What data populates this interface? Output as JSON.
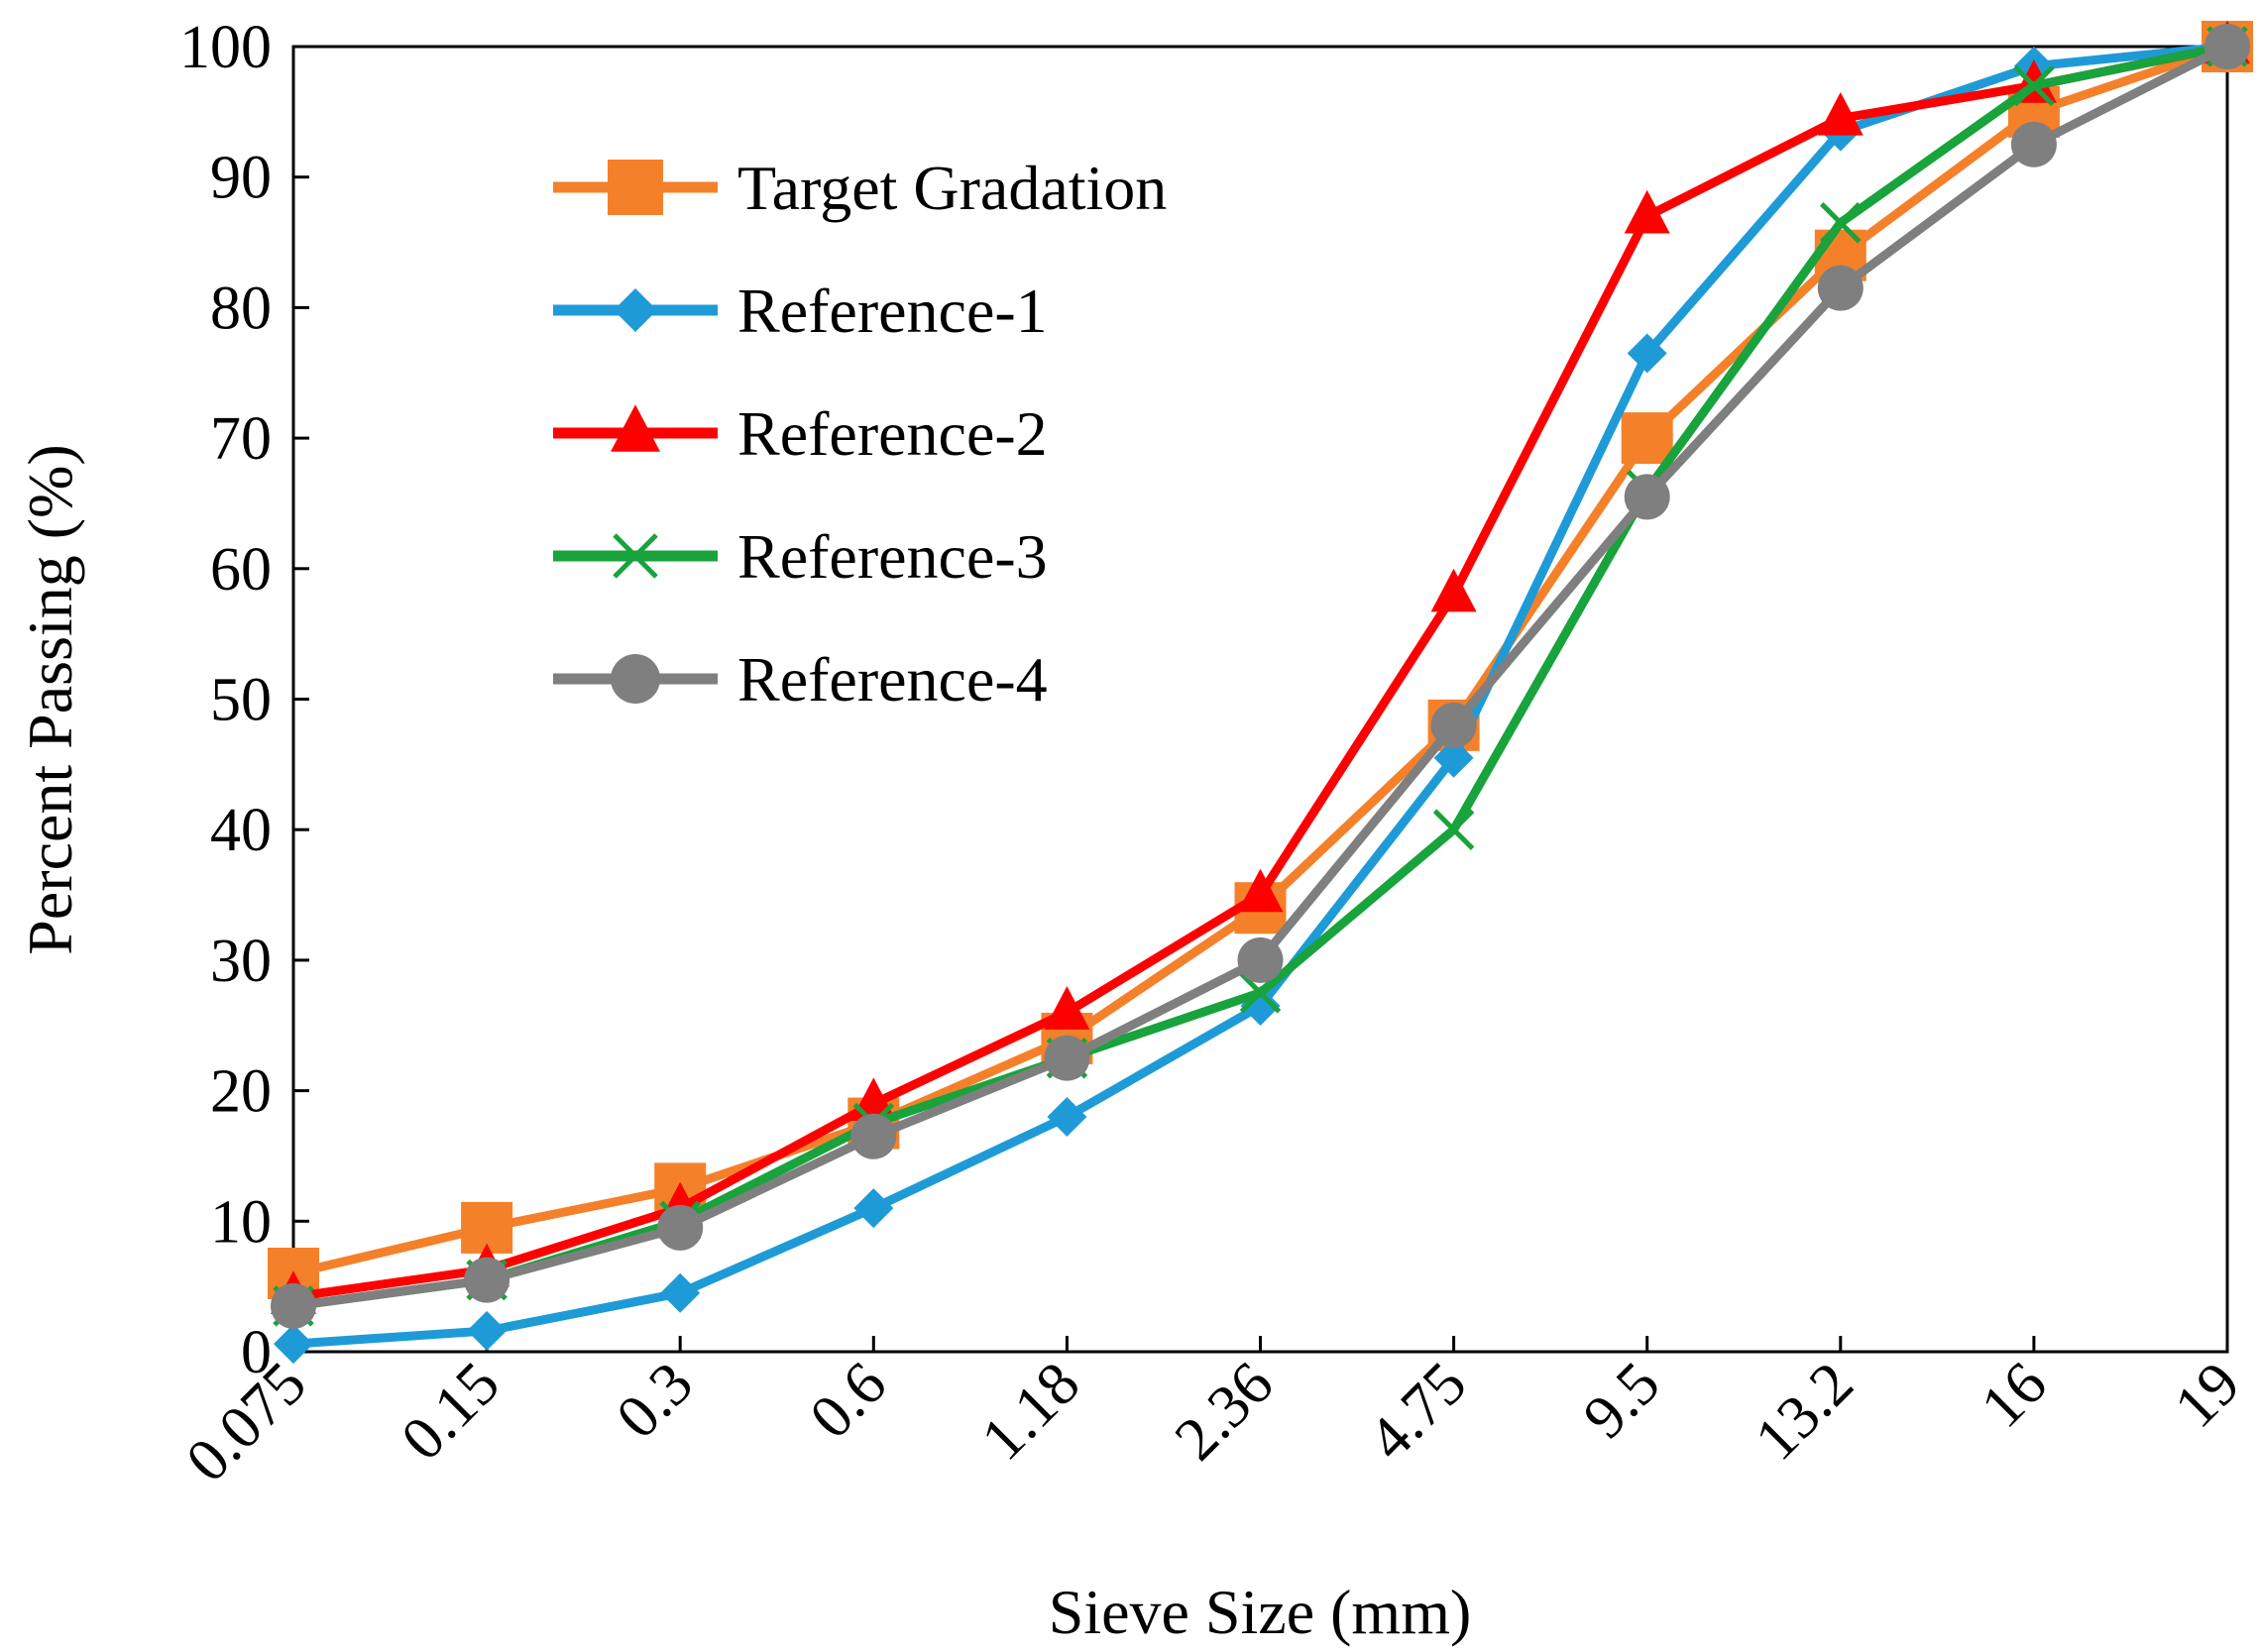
{
  "chart_data": {
    "type": "line",
    "title": "",
    "xlabel": "Sieve Size (mm)",
    "ylabel": "Percent Passing (%)",
    "categories": [
      "0.075",
      "0.15",
      "0.3",
      "0.6",
      "1.18",
      "2.36",
      "4.75",
      "9.5",
      "13.2",
      "16",
      "19"
    ],
    "ylim": [
      0,
      100
    ],
    "yticks": [
      0,
      10,
      20,
      30,
      40,
      50,
      60,
      70,
      80,
      90,
      100
    ],
    "grid": false,
    "legend_position": "top-left",
    "series": [
      {
        "name": "Target Gradation",
        "color": "#F5802A",
        "marker": "square",
        "values": [
          6,
          9.5,
          12.5,
          17.5,
          24,
          34,
          48,
          70,
          84,
          95,
          100
        ]
      },
      {
        "name": "Reference-1",
        "color": "#1E9BD7",
        "marker": "diamond",
        "values": [
          0.6,
          1.6,
          4.5,
          11,
          18,
          26.5,
          45.5,
          76.5,
          93.5,
          98.5,
          100
        ]
      },
      {
        "name": "Reference-2",
        "color": "#FF0000",
        "marker": "triangle",
        "values": [
          4.2,
          6.3,
          11,
          19,
          26,
          35,
          58,
          87,
          94.5,
          97,
          100
        ]
      },
      {
        "name": "Reference-3",
        "color": "#18A33C",
        "marker": "x",
        "values": [
          3.5,
          5.5,
          10,
          17.5,
          22.5,
          27.5,
          40,
          66,
          86.5,
          97,
          100
        ]
      },
      {
        "name": "Reference-4",
        "color": "#7F7F7F",
        "marker": "circle",
        "values": [
          3.5,
          5.5,
          9.5,
          16.5,
          22.5,
          30,
          48,
          65.5,
          81.5,
          92.5,
          100
        ]
      }
    ]
  }
}
